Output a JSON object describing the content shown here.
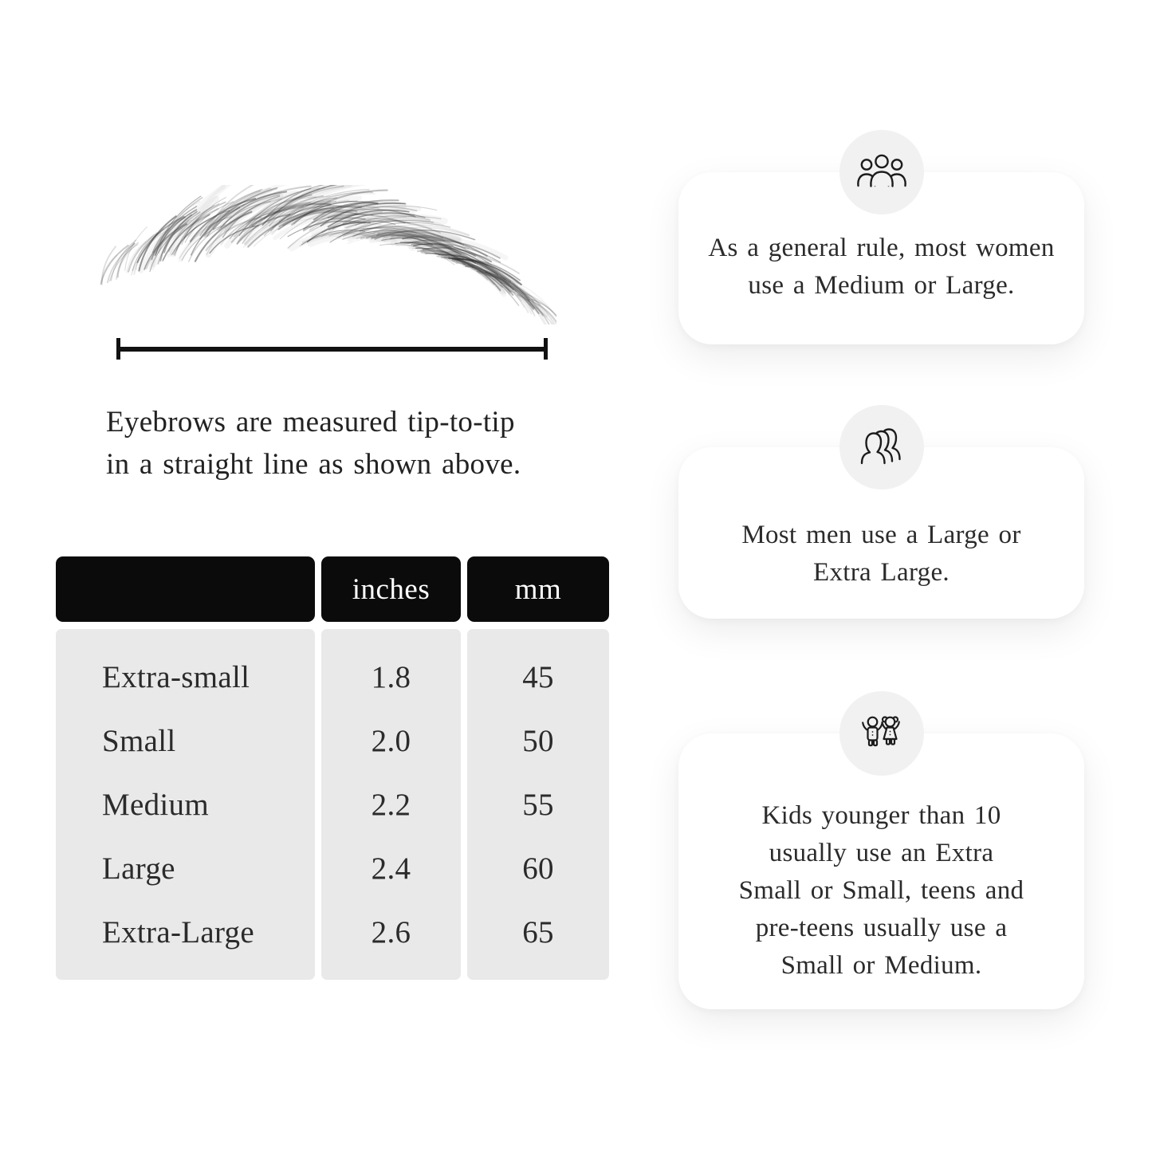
{
  "page": {
    "bg": "#ffffff",
    "text_color": "#2b2b2b"
  },
  "measurement_figure": {
    "illustration": "eyebrow-sketch",
    "caption_lines": [
      "Eyebrows are measured tip-to-tip",
      "in a straight line as shown above."
    ]
  },
  "size_table": {
    "header": {
      "col1": "",
      "col2": "inches",
      "col3": "mm"
    },
    "rows": [
      {
        "label": "Extra-small",
        "inches": "1.8",
        "mm": "45"
      },
      {
        "label": "Small",
        "inches": "2.0",
        "mm": "50"
      },
      {
        "label": "Medium",
        "inches": "2.2",
        "mm": "55"
      },
      {
        "label": "Large",
        "inches": "2.4",
        "mm": "60"
      },
      {
        "label": "Extra-Large",
        "inches": "2.6",
        "mm": "65"
      }
    ],
    "colors": {
      "header_bg": "#0b0b0b",
      "header_text": "#ffffff",
      "body_bg": "#e9e9e9"
    }
  },
  "cards": [
    {
      "icon": "women-group-icon",
      "lines": [
        "As a general rule, most women",
        "use a Medium or Large."
      ]
    },
    {
      "icon": "men-group-icon",
      "lines": [
        "Most men use a Large or",
        "Extra Large."
      ]
    },
    {
      "icon": "children-icon",
      "lines": [
        "Kids younger than 10",
        "usually use an Extra",
        "Small or Small, teens and",
        "pre-teens usually use a",
        "Small or Medium."
      ]
    }
  ],
  "colors": {
    "card_bg": "#ffffff",
    "icon_circle_bg": "#f1f1f1",
    "line_color": "#111111"
  }
}
